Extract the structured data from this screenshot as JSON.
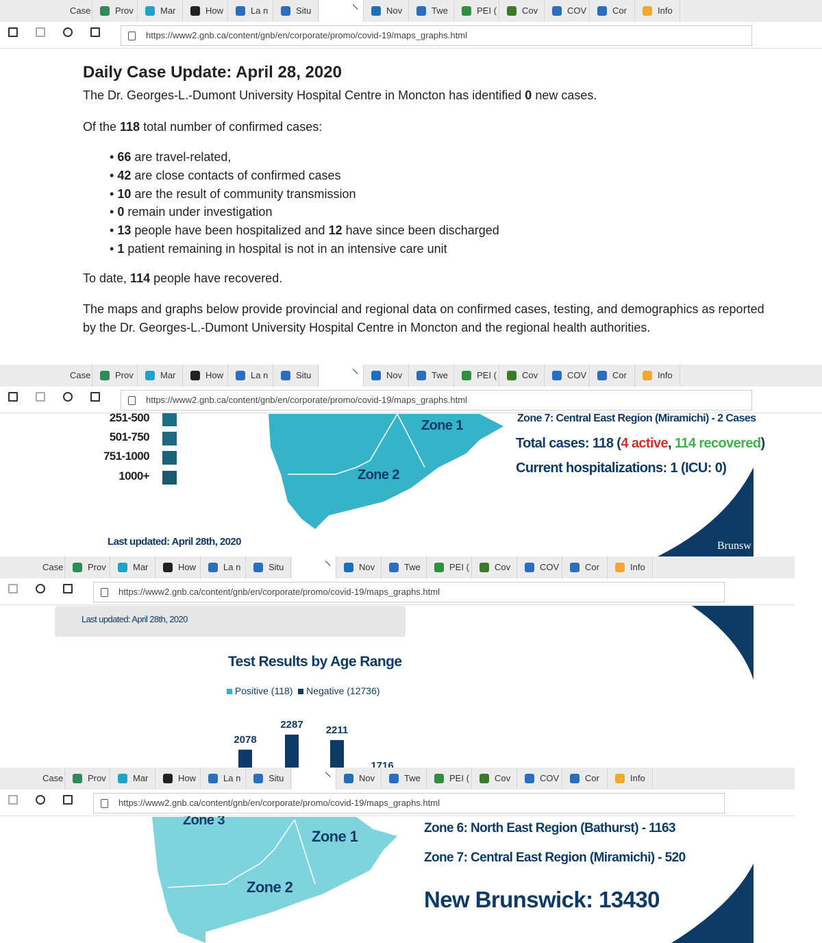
{
  "browser": {
    "tabs": [
      "Case",
      "Prov",
      "Mar",
      "How",
      "La n",
      "Situ",
      "Nov",
      "Twe",
      "PEI (",
      "Cov",
      "COV",
      "Cor",
      "Info"
    ],
    "url": "https://www2.gnb.ca/content/gnb/en/corporate/promo/covid-19/maps_graphs.html"
  },
  "update": {
    "title": "Daily Case Update: April 28, 2020",
    "intro": [
      "The Dr. Georges-L.-Dumont University Hospital Centre in Moncton has identified ",
      "0",
      " new cases."
    ],
    "total": [
      "Of the ",
      "118",
      " total number of confirmed cases:"
    ],
    "bullets": [
      [
        "",
        "66",
        " are travel-related,"
      ],
      [
        "",
        "42",
        " are close contacts of confirmed cases"
      ],
      [
        "",
        "10",
        " are the result of community transmission"
      ],
      [
        "",
        "0",
        " remain under investigation"
      ],
      [
        "",
        "13",
        " people have been hospitalized and ",
        "12",
        " have since been discharged"
      ],
      [
        "",
        "1",
        " patient remaining in hospital is not in an intensive care unit"
      ]
    ],
    "recovered": [
      "To date, ",
      "114",
      " people have recovered."
    ],
    "maps_note": "The maps and graphs below provide provincial and regional data on confirmed cases, testing, and demographics as reported by the Dr. Georges-L.-Dumont University Hospital Centre in Moncton and the regional health authorities."
  },
  "case_map": {
    "legend": [
      "251-500",
      "501-750",
      "751-1000",
      "1000+"
    ],
    "zones": [
      "Zone 1",
      "Zone 2"
    ],
    "zone7": "Zone 7: Central East Region (Miramichi) - 2 Cases",
    "total_cases": [
      "Total cases: 118 (",
      "4 active",
      ", ",
      "114 recovered",
      ")"
    ],
    "hospitalizations": "Current hospitalizations: 1 (ICU: 0)",
    "last_updated": "Last updated: April 28th, 2020",
    "logo": "Brunsw"
  },
  "testing": {
    "last_updated": "Last updated: April 28th, 2020",
    "title": "Test Results by Age Range",
    "legend": [
      "Positive (118)",
      "Negative (12736)"
    ],
    "negative_values": [
      2078,
      2287,
      2211,
      1716
    ]
  },
  "test_map": {
    "zones": [
      "Zone 3",
      "Zone 1",
      "Zone 2"
    ],
    "zone6": "Zone 6: North East Region (Bathurst) - 1163",
    "zone7": "Zone 7: Central East Region (Miramichi) - 520",
    "total": "New Brunswick: 13430"
  }
}
